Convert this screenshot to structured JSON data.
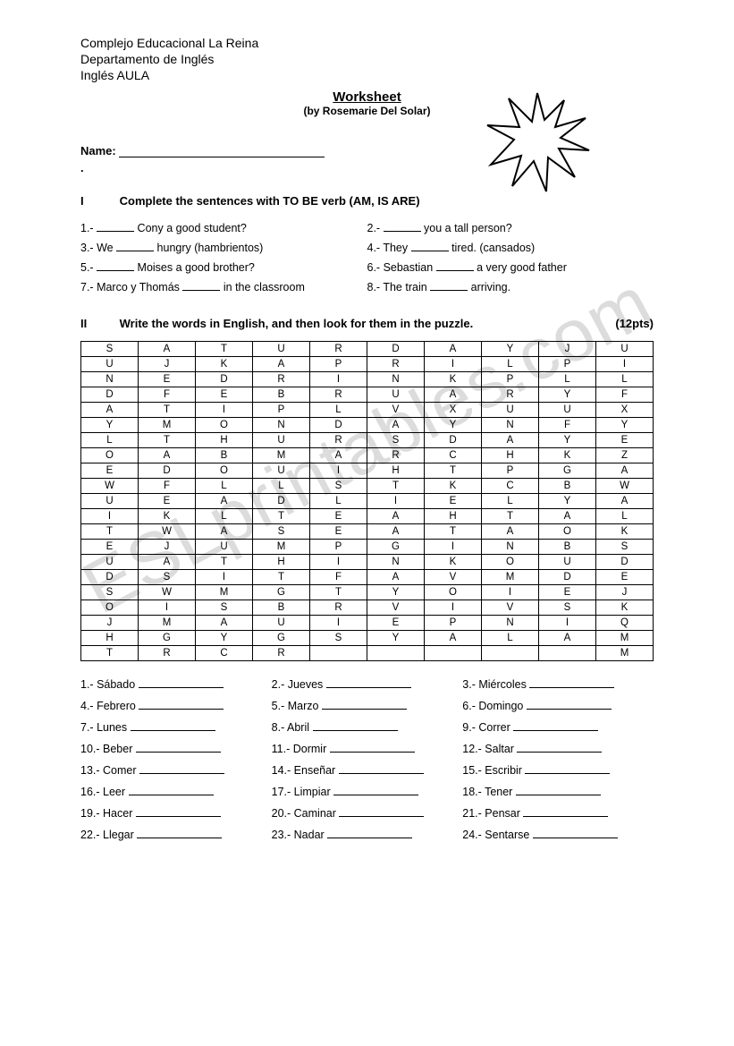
{
  "header": {
    "org": "Complejo Educacional La Reina",
    "dept": "Departamento de Inglés",
    "course": "Inglés AULA"
  },
  "title": {
    "main": "Worksheet",
    "by": "(by Rosemarie Del Solar)"
  },
  "name_label": "Name:",
  "watermark_text": "ESLprintables.com",
  "section1": {
    "roman": "I",
    "title": "Complete the sentences with TO BE verb  (AM, IS ARE)",
    "items": [
      {
        "n": "1.-",
        "before": "",
        "after": " Cony a good student?"
      },
      {
        "n": "2.-",
        "before": "",
        "after": " you a tall person?"
      },
      {
        "n": "3.-",
        "before": "We ",
        "after": " hungry (hambrientos)"
      },
      {
        "n": "4.-",
        "before": "They ",
        "after": " tired. (cansados)"
      },
      {
        "n": "5.-",
        "before": "",
        "after": " Moises a good brother?"
      },
      {
        "n": "6.-",
        "before": "Sebastian ",
        "after": " a very good father"
      },
      {
        "n": "7.-",
        "before": "Marco y Thomás ",
        "after": " in the classroom"
      },
      {
        "n": "8.-",
        "before": "The train ",
        "after": "  arriving."
      }
    ]
  },
  "section2": {
    "roman": "II",
    "title": "Write the words in English, and then look for them in the puzzle.",
    "points": "(12pts)",
    "puzzle": {
      "type": "table",
      "cols": 10,
      "border_color": "#000000",
      "background_color": "#ffffff",
      "font_size": 11.5,
      "rows": [
        [
          "S",
          "A",
          "T",
          "U",
          "R",
          "D",
          "A",
          "Y",
          "J",
          "U"
        ],
        [
          "U",
          "J",
          "K",
          "A",
          "P",
          "R",
          "I",
          "L",
          "P",
          "I"
        ],
        [
          "N",
          "E",
          "D",
          "R",
          "I",
          "N",
          "K",
          "P",
          "L",
          "L"
        ],
        [
          "D",
          "F",
          "E",
          "B",
          "R",
          "U",
          "A",
          "R",
          "Y",
          "F"
        ],
        [
          "A",
          "T",
          "I",
          "P",
          "L",
          "V",
          "X",
          "U",
          "U",
          "X"
        ],
        [
          "Y",
          "M",
          "O",
          "N",
          "D",
          "A",
          "Y",
          "N",
          "F",
          "Y"
        ],
        [
          "L",
          "T",
          "H",
          "U",
          "R",
          "S",
          "D",
          "A",
          "Y",
          "E"
        ],
        [
          "O",
          "A",
          "B",
          "M",
          "A",
          "R",
          "C",
          "H",
          "K",
          "Z"
        ],
        [
          "E",
          "D",
          "O",
          "U",
          "I",
          "H",
          "T",
          "P",
          "G",
          "A"
        ],
        [
          "W",
          "F",
          "L",
          "L",
          "S",
          "T",
          "K",
          "C",
          "B",
          "W"
        ],
        [
          "U",
          "E",
          "A",
          "D",
          "L",
          "I",
          "E",
          "L",
          "Y",
          "A"
        ],
        [
          "I",
          "K",
          "L",
          "T",
          "E",
          "A",
          "H",
          "T",
          "A",
          "L"
        ],
        [
          "T",
          "W",
          "A",
          "S",
          "E",
          "A",
          "T",
          "A",
          "O",
          "K"
        ],
        [
          "E",
          "J",
          "U",
          "M",
          "P",
          "G",
          "I",
          "N",
          "B",
          "S"
        ],
        [
          "U",
          "A",
          "T",
          "H",
          "I",
          "N",
          "K",
          "O",
          "U",
          "D"
        ],
        [
          "D",
          "S",
          "I",
          "T",
          "F",
          "A",
          "V",
          "M",
          "D",
          "E"
        ],
        [
          "S",
          "W",
          "M",
          "G",
          "T",
          "Y",
          "O",
          "I",
          "E",
          "J"
        ],
        [
          "O",
          "I",
          "S",
          "B",
          "R",
          "V",
          "I",
          "V",
          "S",
          "K"
        ],
        [
          "J",
          "M",
          "A",
          "U",
          "I",
          "E",
          "P",
          "N",
          "I",
          "Q"
        ],
        [
          "H",
          "G",
          "Y",
          "G",
          "S",
          "Y",
          "A",
          "L",
          "A",
          "M"
        ],
        [
          "T",
          "R",
          "C",
          "R",
          "",
          "",
          "",
          "",
          "",
          "M"
        ]
      ]
    },
    "words": [
      {
        "n": "1.-",
        "es": "Sábado"
      },
      {
        "n": "2.-",
        "es": "Jueves"
      },
      {
        "n": "3.-",
        "es": "Miércoles"
      },
      {
        "n": "4.-",
        "es": "Febrero"
      },
      {
        "n": "5.-",
        "es": "Marzo"
      },
      {
        "n": "6.-",
        "es": "Domingo"
      },
      {
        "n": "7.-",
        "es": "Lunes"
      },
      {
        "n": "8.-",
        "es": "Abril"
      },
      {
        "n": "9.-",
        "es": "Correr"
      },
      {
        "n": "10.-",
        "es": "Beber"
      },
      {
        "n": "11.-",
        "es": "Dormir"
      },
      {
        "n": "12.-",
        "es": "Saltar"
      },
      {
        "n": "13.-",
        "es": "Comer"
      },
      {
        "n": "14.-",
        "es": "Enseñar"
      },
      {
        "n": "15.-",
        "es": "Escribir"
      },
      {
        "n": "16.-",
        "es": "Leer"
      },
      {
        "n": "17.-",
        "es": "Limpiar"
      },
      {
        "n": "18.-",
        "es": "Tener"
      },
      {
        "n": "19.-",
        "es": "Hacer"
      },
      {
        "n": "20.-",
        "es": "Caminar"
      },
      {
        "n": "21.-",
        "es": "Pensar"
      },
      {
        "n": "22.-",
        "es": "Llegar"
      },
      {
        "n": "23.-",
        "es": "Nadar"
      },
      {
        "n": "24.-",
        "es": "Sentarse"
      }
    ]
  }
}
